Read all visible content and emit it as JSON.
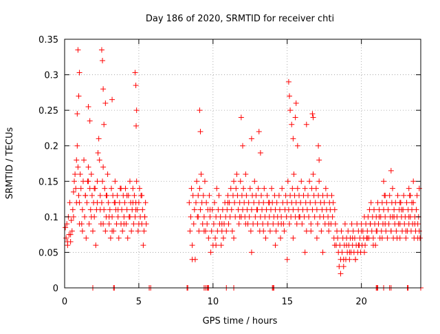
{
  "chart_data": {
    "type": "scatter",
    "title": "Day 186 of 2020, SRMTID for receiver chti",
    "xlabel": "GPS time / hours",
    "ylabel": "SRMTID / TECUs",
    "xlim": [
      0,
      24
    ],
    "ylim": [
      0,
      0.35
    ],
    "grid": true,
    "marker": "+",
    "color": "#ff0000",
    "x_ticks": [
      0,
      5,
      10,
      15,
      20
    ],
    "x_tick_labels": [
      "0",
      "5",
      "10",
      "15",
      "20"
    ],
    "y_ticks": [
      0,
      0.05,
      0.1,
      0.15,
      0.2,
      0.25,
      0.3,
      0.35
    ],
    "y_tick_labels": [
      "0",
      "0.05",
      "0.1",
      "0.15",
      "0.2",
      "0.25",
      "0.3",
      "0.35"
    ],
    "series": [
      {
        "name": "SRMTID",
        "x": [
          0.05,
          0.1,
          0.15,
          0.2,
          0.25,
          0.3,
          0.35,
          0.4,
          0.45,
          0.5,
          0.55,
          0.6,
          0.65,
          0.7,
          0.75,
          0.8,
          0.85,
          0.9,
          0.95,
          1.0,
          1.05,
          1.1,
          1.15,
          1.2,
          1.25,
          1.3,
          1.35,
          1.4,
          1.45,
          1.5,
          1.55,
          1.6,
          1.65,
          1.7,
          1.75,
          1.8,
          1.85,
          1.9,
          1.95,
          2.0,
          2.05,
          2.1,
          2.15,
          2.2,
          2.25,
          2.3,
          2.35,
          2.4,
          2.45,
          2.5,
          2.55,
          2.6,
          2.65,
          2.7,
          2.75,
          2.8,
          2.85,
          2.9,
          2.95,
          3.0,
          3.05,
          3.1,
          3.15,
          3.2,
          3.25,
          3.3,
          3.35,
          3.4,
          3.45,
          3.5,
          3.55,
          3.6,
          3.65,
          3.7,
          3.75,
          3.8,
          3.85,
          3.9,
          3.95,
          4.0,
          4.05,
          4.1,
          4.15,
          4.2,
          4.25,
          4.3,
          4.35,
          4.4,
          4.45,
          4.5,
          4.55,
          4.6,
          4.65,
          4.7,
          4.75,
          4.8,
          4.85,
          4.9,
          4.95,
          5.0,
          5.05,
          5.1,
          5.15,
          5.2,
          5.25,
          5.3,
          5.35,
          5.4,
          5.45,
          5.5,
          0.2,
          0.4,
          0.6,
          0.8,
          1.0,
          1.2,
          1.4,
          1.6,
          1.8,
          2.0,
          2.2,
          2.4,
          2.6,
          2.8,
          3.0,
          3.2,
          3.4,
          3.6,
          3.8,
          4.0,
          4.2,
          4.4,
          4.6,
          4.8,
          5.0,
          5.2,
          5.4,
          0.9,
          1.0,
          2.5,
          2.55,
          2.6,
          3.2,
          4.75,
          4.8,
          4.85,
          1.6,
          1.7,
          2.75,
          0.85,
          0.95,
          2.65,
          4.82,
          8.4,
          8.45,
          8.5,
          8.55,
          8.6,
          8.65,
          8.7,
          8.75,
          8.8,
          8.85,
          8.9,
          8.95,
          9.0,
          9.05,
          9.1,
          9.15,
          9.2,
          9.25,
          9.3,
          9.35,
          9.4,
          9.45,
          9.5,
          9.55,
          9.6,
          9.65,
          9.7,
          9.75,
          9.8,
          9.85,
          9.9,
          9.95,
          10.0,
          10.05,
          10.1,
          10.15,
          10.2,
          10.25,
          10.3,
          10.35,
          10.4,
          10.45,
          10.5,
          10.55,
          10.6,
          10.65,
          10.7,
          10.75,
          10.8,
          10.85,
          10.9,
          10.95,
          11.0,
          11.05,
          11.1,
          11.15,
          11.2,
          11.25,
          11.3,
          11.35,
          11.4,
          11.45,
          11.5,
          11.55,
          11.6,
          11.65,
          11.7,
          11.75,
          11.8,
          11.85,
          11.9,
          11.95,
          12.0,
          12.05,
          12.1,
          12.15,
          12.2,
          12.25,
          12.3,
          12.35,
          12.4,
          12.45,
          12.5,
          12.55,
          12.6,
          12.65,
          12.7,
          12.75,
          12.8,
          12.85,
          12.9,
          12.95,
          13.0,
          13.05,
          13.1,
          13.15,
          13.2,
          13.25,
          13.3,
          13.35,
          13.4,
          13.45,
          13.5,
          13.55,
          13.6,
          13.65,
          13.7,
          13.75,
          13.8,
          13.85,
          13.9,
          13.95,
          14.0,
          14.05,
          14.1,
          14.15,
          14.2,
          14.25,
          14.3,
          14.35,
          14.4,
          14.45,
          14.5,
          14.55,
          14.6,
          14.65,
          14.7,
          14.75,
          14.8,
          14.85,
          14.9,
          14.95,
          15.0,
          15.05,
          15.1,
          15.15,
          15.2,
          15.25,
          15.3,
          15.35,
          15.4,
          15.45,
          15.5,
          15.55,
          15.6,
          15.65,
          15.7,
          15.75,
          15.8,
          15.85,
          15.9,
          15.95,
          16.0,
          16.05,
          16.1,
          16.15,
          16.2,
          16.25,
          16.3,
          16.35,
          16.4,
          16.45,
          16.5,
          16.55,
          16.6,
          16.65,
          16.7,
          16.75,
          16.8,
          16.85,
          16.9,
          16.95,
          17.0,
          17.05,
          17.1,
          17.15,
          17.2,
          17.25,
          17.3,
          17.35,
          17.4,
          17.45,
          17.5,
          17.55,
          17.6,
          17.65,
          17.7,
          17.75,
          17.8,
          17.85,
          17.9,
          17.95,
          18.0,
          18.05,
          18.1,
          18.15,
          18.2,
          18.25,
          18.3,
          18.35,
          8.6,
          9.0,
          9.4,
          9.8,
          10.2,
          10.6,
          11.0,
          11.4,
          11.8,
          12.2,
          12.6,
          13.0,
          13.4,
          13.8,
          14.2,
          14.6,
          15.0,
          15.4,
          15.8,
          16.2,
          16.6,
          17.0,
          17.4,
          17.8,
          18.2,
          9.1,
          9.15,
          11.9,
          12.0,
          12.6,
          13.1,
          13.2,
          15.1,
          15.15,
          15.2,
          15.55,
          15.6,
          15.7,
          16.3,
          16.7,
          16.75,
          17.1,
          17.15,
          15.4,
          15.3,
          18.4,
          18.45,
          18.5,
          18.55,
          18.6,
          18.65,
          18.7,
          18.75,
          18.8,
          18.85,
          18.9,
          18.95,
          19.0,
          19.05,
          19.1,
          19.15,
          19.2,
          19.25,
          19.3,
          19.35,
          19.4,
          19.45,
          19.5,
          19.55,
          19.6,
          19.65,
          19.7,
          19.75,
          19.8,
          19.85,
          19.9,
          19.95,
          20.0,
          20.05,
          20.1,
          20.15,
          20.2,
          20.25,
          20.3,
          20.35,
          20.4,
          20.45,
          20.5,
          20.55,
          20.6,
          20.65,
          20.7,
          20.75,
          20.8,
          20.85,
          20.9,
          20.95,
          21.0,
          21.05,
          21.1,
          21.15,
          21.2,
          21.25,
          21.3,
          21.35,
          21.4,
          21.45,
          21.5,
          21.55,
          21.6,
          21.65,
          21.7,
          21.75,
          21.8,
          21.85,
          21.9,
          21.95,
          22.0,
          22.05,
          22.1,
          22.15,
          22.2,
          22.25,
          22.3,
          22.35,
          22.4,
          22.45,
          22.5,
          22.55,
          22.6,
          22.65,
          22.7,
          22.75,
          22.8,
          22.85,
          22.9,
          22.95,
          23.0,
          23.05,
          23.1,
          23.15,
          23.2,
          23.25,
          23.3,
          23.35,
          23.4,
          23.45,
          23.5,
          23.55,
          23.6,
          23.65,
          23.7,
          23.75,
          23.8,
          23.85,
          23.9,
          23.95,
          18.6,
          18.8,
          19.0,
          19.2,
          19.4,
          19.6,
          19.8,
          20.0,
          20.2,
          20.4,
          20.6,
          20.8,
          21.0,
          21.2,
          21.4,
          21.6,
          21.8,
          22.0,
          22.2,
          22.4,
          22.6,
          22.8,
          23.0,
          23.2,
          23.4,
          23.6,
          23.8,
          21.5,
          21.6,
          22.0,
          22.1,
          22.6,
          22.7,
          23.2,
          23.3,
          23.5,
          23.9,
          1.9,
          3.3,
          3.35,
          5.7,
          5.8,
          8.25,
          8.3,
          9.4,
          9.5,
          9.6,
          9.65,
          9.7,
          10.9,
          11.4,
          14.0,
          14.05,
          14.1,
          21.0,
          21.05,
          21.1,
          21.5,
          21.9,
          22.0,
          23.1,
          23.15,
          24.0
        ],
        "y": [
          0.085,
          0.07,
          0.09,
          0.06,
          0.1,
          0.075,
          0.12,
          0.065,
          0.095,
          0.08,
          0.11,
          0.135,
          0.15,
          0.16,
          0.14,
          0.18,
          0.2,
          0.17,
          0.13,
          0.12,
          0.16,
          0.14,
          0.09,
          0.11,
          0.15,
          0.18,
          0.1,
          0.13,
          0.07,
          0.12,
          0.15,
          0.17,
          0.09,
          0.14,
          0.11,
          0.16,
          0.13,
          0.08,
          0.12,
          0.1,
          0.14,
          0.06,
          0.11,
          0.15,
          0.19,
          0.21,
          0.18,
          0.13,
          0.09,
          0.12,
          0.15,
          0.17,
          0.11,
          0.14,
          0.08,
          0.1,
          0.13,
          0.16,
          0.12,
          0.09,
          0.11,
          0.07,
          0.14,
          0.1,
          0.13,
          0.08,
          0.12,
          0.15,
          0.11,
          0.09,
          0.13,
          0.1,
          0.07,
          0.12,
          0.14,
          0.09,
          0.11,
          0.08,
          0.13,
          0.1,
          0.12,
          0.14,
          0.09,
          0.11,
          0.07,
          0.13,
          0.1,
          0.15,
          0.12,
          0.08,
          0.11,
          0.14,
          0.09,
          0.13,
          0.1,
          0.12,
          0.15,
          0.11,
          0.08,
          0.12,
          0.14,
          0.1,
          0.13,
          0.09,
          0.11,
          0.06,
          0.08,
          0.1,
          0.12,
          0.09,
          0.065,
          0.075,
          0.1,
          0.12,
          0.09,
          0.08,
          0.13,
          0.15,
          0.1,
          0.14,
          0.12,
          0.11,
          0.09,
          0.13,
          0.1,
          0.08,
          0.12,
          0.11,
          0.14,
          0.09,
          0.13,
          0.1,
          0.12,
          0.11,
          0.09,
          0.13,
          0.1,
          0.335,
          0.303,
          0.335,
          0.32,
          0.28,
          0.265,
          0.303,
          0.285,
          0.25,
          0.255,
          0.235,
          0.26,
          0.245,
          0.27,
          0.23,
          0.228,
          0.12,
          0.08,
          0.1,
          0.14,
          0.06,
          0.13,
          0.09,
          0.11,
          0.04,
          0.12,
          0.15,
          0.1,
          0.13,
          0.08,
          0.14,
          0.11,
          0.16,
          0.12,
          0.09,
          0.13,
          0.1,
          0.15,
          0.08,
          0.12,
          0.09,
          0.11,
          0.07,
          0.13,
          0.1,
          0.05,
          0.08,
          0.11,
          0.06,
          0.09,
          0.12,
          0.07,
          0.1,
          0.14,
          0.08,
          0.11,
          0.13,
          0.09,
          0.1,
          0.06,
          0.08,
          0.11,
          0.07,
          0.09,
          0.12,
          0.1,
          0.08,
          0.11,
          0.13,
          0.09,
          0.12,
          0.1,
          0.14,
          0.11,
          0.08,
          0.13,
          0.15,
          0.12,
          0.1,
          0.14,
          0.16,
          0.13,
          0.11,
          0.09,
          0.12,
          0.15,
          0.1,
          0.13,
          0.11,
          0.14,
          0.12,
          0.1,
          0.16,
          0.13,
          0.11,
          0.09,
          0.12,
          0.1,
          0.14,
          0.08,
          0.11,
          0.13,
          0.09,
          0.12,
          0.15,
          0.1,
          0.13,
          0.11,
          0.09,
          0.14,
          0.12,
          0.08,
          0.1,
          0.13,
          0.11,
          0.09,
          0.12,
          0.14,
          0.1,
          0.07,
          0.11,
          0.13,
          0.09,
          0.12,
          0.1,
          0.08,
          0.11,
          0.14,
          0.12,
          0.09,
          0.1,
          0.13,
          0.11,
          0.08,
          0.12,
          0.1,
          0.09,
          0.13,
          0.11,
          0.07,
          0.1,
          0.14,
          0.12,
          0.09,
          0.08,
          0.11,
          0.13,
          0.1,
          0.12,
          0.15,
          0.11,
          0.09,
          0.13,
          0.1,
          0.12,
          0.14,
          0.11,
          0.16,
          0.13,
          0.1,
          0.12,
          0.09,
          0.14,
          0.11,
          0.13,
          0.1,
          0.12,
          0.15,
          0.09,
          0.11,
          0.13,
          0.1,
          0.14,
          0.12,
          0.08,
          0.11,
          0.13,
          0.1,
          0.15,
          0.12,
          0.09,
          0.14,
          0.11,
          0.16,
          0.13,
          0.1,
          0.12,
          0.14,
          0.11,
          0.09,
          0.13,
          0.15,
          0.1,
          0.12,
          0.08,
          0.11,
          0.13,
          0.1,
          0.12,
          0.09,
          0.14,
          0.11,
          0.13,
          0.1,
          0.08,
          0.12,
          0.11,
          0.09,
          0.13,
          0.1,
          0.12,
          0.07,
          0.11,
          0.09,
          0.06,
          0.08,
          0.04,
          0.1,
          0.08,
          0.11,
          0.06,
          0.09,
          0.12,
          0.07,
          0.1,
          0.09,
          0.05,
          0.11,
          0.08,
          0.12,
          0.06,
          0.09,
          0.04,
          0.07,
          0.1,
          0.05,
          0.08,
          0.07,
          0.05,
          0.09,
          0.06,
          0.25,
          0.22,
          0.24,
          0.2,
          0.21,
          0.22,
          0.19,
          0.29,
          0.27,
          0.25,
          0.24,
          0.26,
          0.2,
          0.23,
          0.245,
          0.24,
          0.2,
          0.18,
          0.21,
          0.23,
          0.07,
          0.05,
          0.03,
          0.06,
          0.04,
          0.08,
          0.05,
          0.07,
          0.03,
          0.06,
          0.09,
          0.04,
          0.07,
          0.05,
          0.08,
          0.06,
          0.04,
          0.07,
          0.05,
          0.09,
          0.06,
          0.08,
          0.05,
          0.07,
          0.04,
          0.06,
          0.09,
          0.05,
          0.08,
          0.06,
          0.07,
          0.05,
          0.09,
          0.06,
          0.08,
          0.07,
          0.1,
          0.06,
          0.09,
          0.07,
          0.08,
          0.1,
          0.07,
          0.11,
          0.09,
          0.12,
          0.08,
          0.1,
          0.07,
          0.11,
          0.09,
          0.06,
          0.1,
          0.08,
          0.12,
          0.09,
          0.11,
          0.07,
          0.1,
          0.08,
          0.12,
          0.09,
          0.11,
          0.13,
          0.1,
          0.08,
          0.12,
          0.07,
          0.11,
          0.09,
          0.13,
          0.1,
          0.08,
          0.12,
          0.1,
          0.07,
          0.11,
          0.09,
          0.12,
          0.08,
          0.1,
          0.13,
          0.09,
          0.11,
          0.07,
          0.12,
          0.1,
          0.08,
          0.11,
          0.13,
          0.09,
          0.1,
          0.07,
          0.12,
          0.08,
          0.11,
          0.09,
          0.13,
          0.1,
          0.08,
          0.11,
          0.09,
          0.12,
          0.07,
          0.1,
          0.08,
          0.11,
          0.13,
          0.09,
          0.1,
          0.08,
          0.07,
          0.02,
          0.04,
          0.06,
          0.05,
          0.07,
          0.04,
          0.06,
          0.08,
          0.05,
          0.07,
          0.09,
          0.06,
          0.08,
          0.1,
          0.07,
          0.09,
          0.11,
          0.08,
          0.1,
          0.07,
          0.09,
          0.11,
          0.08,
          0.1,
          0.12,
          0.09,
          0.07,
          0.15,
          0.13,
          0.165,
          0.14,
          0.12,
          0.11,
          0.14,
          0.13,
          0.15,
          0.14,
          0,
          0,
          0,
          0,
          0,
          0,
          0,
          0,
          0,
          0,
          0,
          0,
          0,
          0,
          0,
          0,
          0,
          0,
          0,
          0,
          0,
          0,
          0,
          0,
          0,
          0
        ]
      }
    ]
  }
}
